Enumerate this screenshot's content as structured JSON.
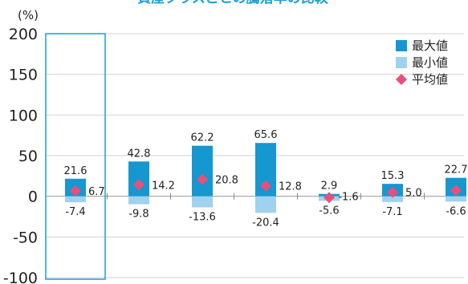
{
  "chart_data": {
    "type": "bar",
    "title": "資産クラスごとの騰落率の比較",
    "unit_label": "(%)",
    "ylim": [
      -100,
      200
    ],
    "yticks": [
      200,
      150,
      100,
      50,
      0,
      -50,
      -100
    ],
    "ytick_labels": [
      "200",
      "150",
      "100",
      "50",
      "0",
      "-50",
      "-100"
    ],
    "grid": "horizontal",
    "legend_position": "top-right",
    "highlighted_group_index": 0,
    "groups": [
      {
        "max": 21.6,
        "min": -7.4,
        "avg": 6.7
      },
      {
        "max": 42.8,
        "min": -9.8,
        "avg": 14.2
      },
      {
        "max": 62.2,
        "min": -13.6,
        "avg": 20.8
      },
      {
        "max": 65.6,
        "min": -20.4,
        "avg": 12.8
      },
      {
        "max": 2.9,
        "min": -5.6,
        "avg": -1.6
      },
      {
        "max": 15.3,
        "min": -7.1,
        "avg": 5.0
      },
      {
        "max": 22.7,
        "min": -6.6,
        "avg": 7.3
      }
    ],
    "series": [
      {
        "name": "最大値",
        "color": "#1597d0",
        "values": [
          21.6,
          42.8,
          62.2,
          65.6,
          2.9,
          15.3,
          22.7
        ],
        "labels": [
          "21.6",
          "42.8",
          "62.2",
          "65.6",
          "2.9",
          "15.3",
          "22.7"
        ]
      },
      {
        "name": "最小値",
        "color": "#9fd2ef",
        "values": [
          -7.4,
          -9.8,
          -13.6,
          -20.4,
          -5.6,
          -7.1,
          -6.6
        ],
        "labels": [
          "-7.4",
          "-9.8",
          "-13.6",
          "-20.4",
          "-5.6",
          "-7.1",
          "-6.6"
        ]
      },
      {
        "name": "平均値",
        "color": "#e8507a",
        "values": [
          6.7,
          14.2,
          20.8,
          12.8,
          -1.6,
          5.0,
          7.3
        ],
        "labels": [
          "6.7",
          "14.2",
          "20.8",
          "12.8",
          "-1.6",
          "5.0",
          "7.3"
        ]
      }
    ]
  }
}
